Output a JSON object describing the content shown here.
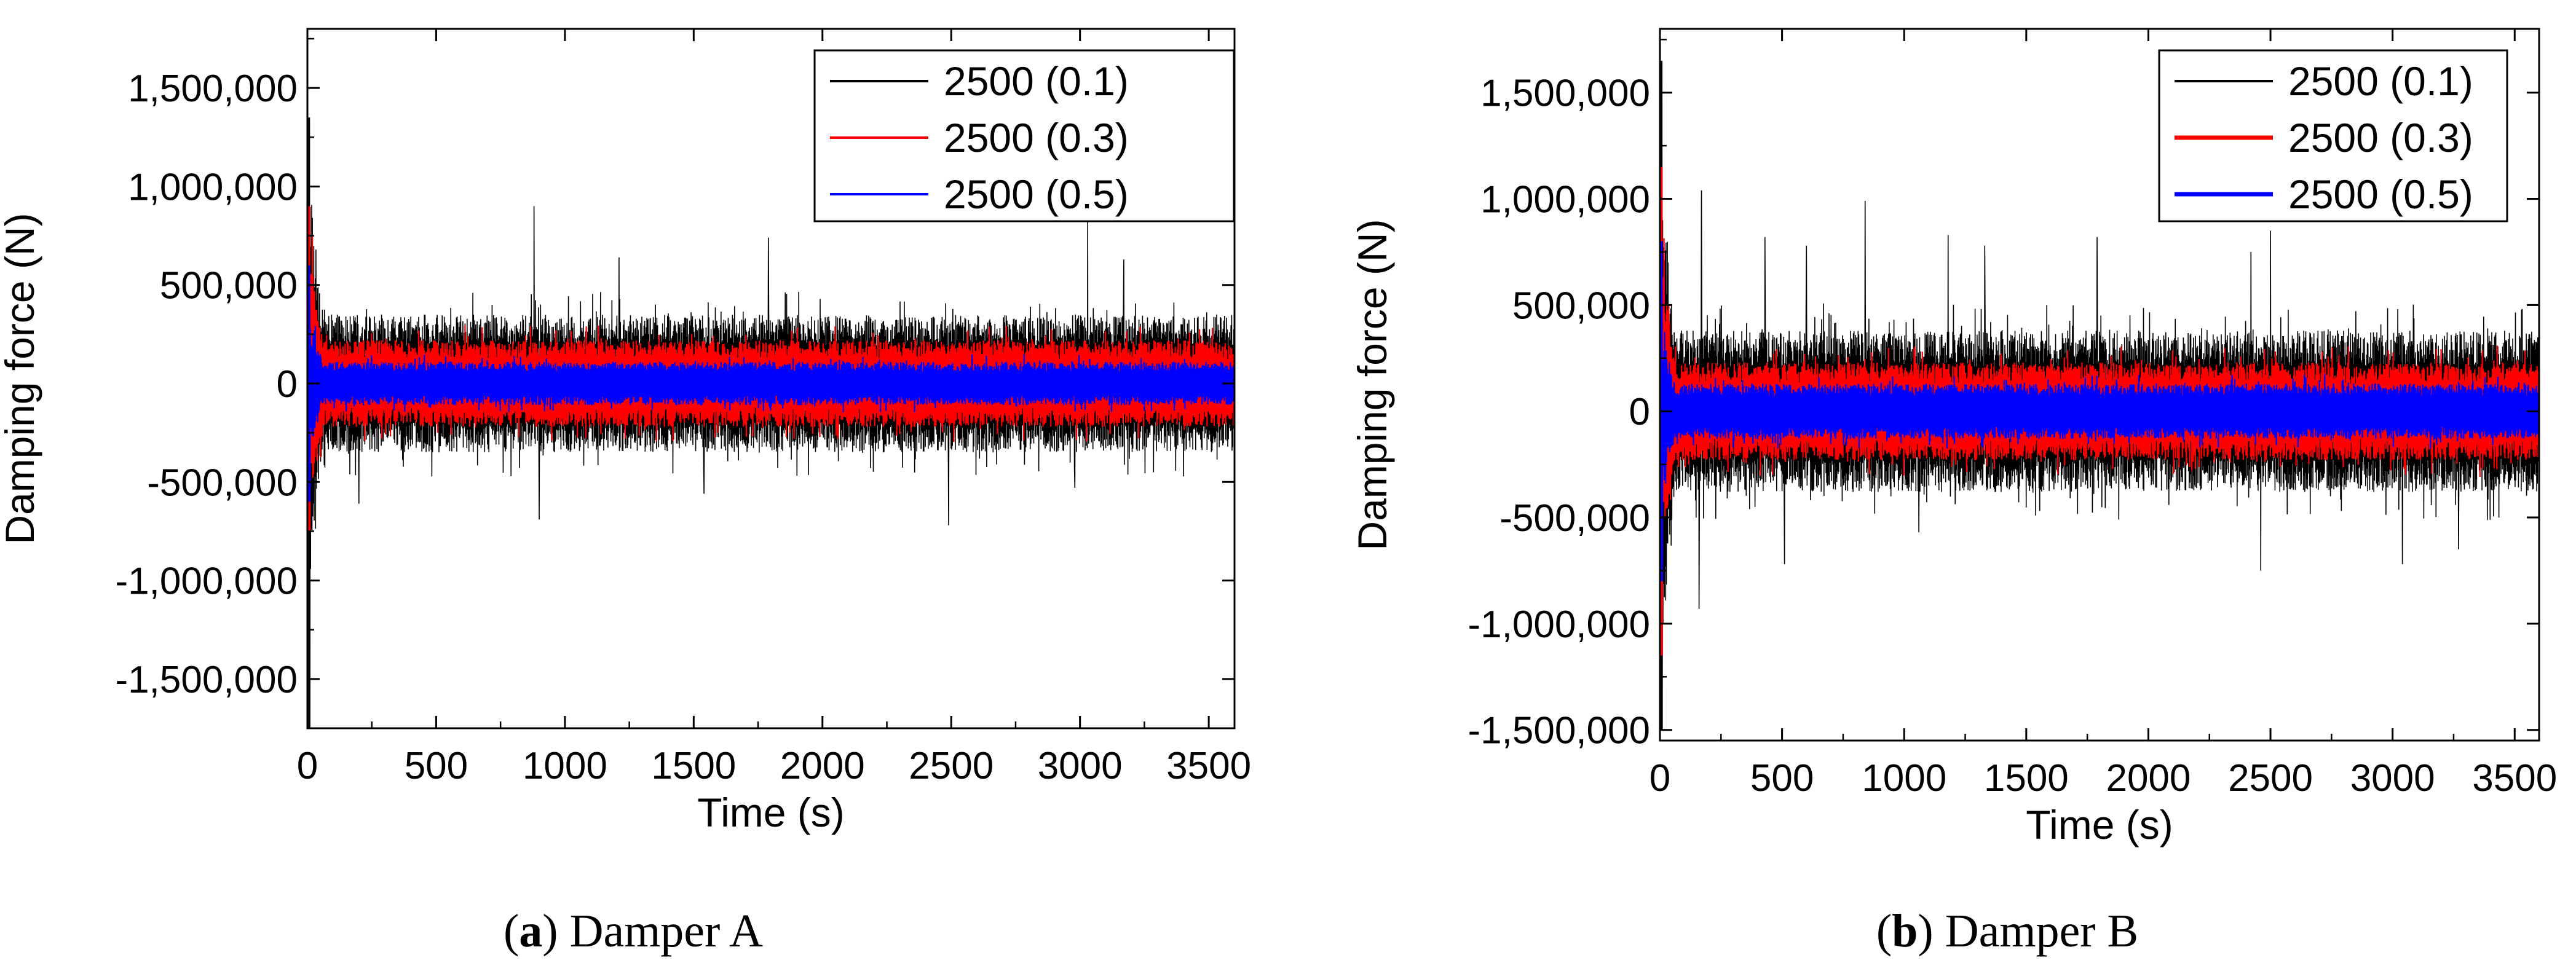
{
  "chart_data": [
    {
      "type": "line",
      "panel": "a",
      "caption_letter": "a",
      "caption_text": "Damper A",
      "xlabel": "Time (s)",
      "ylabel": "Damping force (N)",
      "xlim": [
        0,
        3600
      ],
      "ylim": [
        -1750000,
        1800000
      ],
      "xticks": [
        0,
        500,
        1000,
        1500,
        2000,
        2500,
        3000,
        3500
      ],
      "xtick_labels": [
        "0",
        "500",
        "1000",
        "1500",
        "2000",
        "2500",
        "3000",
        "3500"
      ],
      "yticks": [
        -1500000,
        -1000000,
        -500000,
        0,
        500000,
        1000000,
        1500000
      ],
      "ytick_labels": [
        "-1,500,000",
        "-1,000,000",
        "-500,000",
        "0",
        "500,000",
        "1,000,000",
        "1,500,000"
      ],
      "legend_position": "top-right",
      "series": [
        {
          "name": "2500 (0.1)",
          "color": "#000000",
          "typical_envelope": 350000,
          "initial_peak": [
            1350000,
            -1750000
          ],
          "peaks": [
            [
              880,
              900000
            ],
            [
              1790,
              740000
            ],
            [
              3030,
              820000
            ],
            [
              1210,
              640000
            ],
            [
              3170,
              630000
            ],
            [
              2490,
              -720000
            ],
            [
              900,
              -690000
            ],
            [
              1540,
              -560000
            ],
            [
              2980,
              -530000
            ],
            [
              200,
              -610000
            ]
          ]
        },
        {
          "name": "2500 (0.3)",
          "color": "#ff0000",
          "typical_envelope": 220000,
          "initial_peak": [
            900000,
            -750000
          ],
          "peaks": []
        },
        {
          "name": "2500 (0.5)",
          "color": "#0000ff",
          "typical_envelope": 110000,
          "initial_peak": [
            600000,
            -600000
          ],
          "peaks": []
        }
      ]
    },
    {
      "type": "line",
      "panel": "b",
      "caption_letter": "b",
      "caption_text": "Damper B",
      "xlabel": "Time (s)",
      "ylabel": "Damping force (N)",
      "xlim": [
        0,
        3600
      ],
      "ylim": [
        -1550000,
        1800000
      ],
      "xticks": [
        0,
        500,
        1000,
        1500,
        2000,
        2500,
        3000,
        3500
      ],
      "xtick_labels": [
        "0",
        "500",
        "1000",
        "1500",
        "2000",
        "2500",
        "3000",
        "3500"
      ],
      "yticks": [
        -1500000,
        -1000000,
        -500000,
        0,
        500000,
        1000000,
        1500000
      ],
      "ytick_labels": [
        "-1,500,000",
        "-1,000,000",
        "-500,000",
        "0",
        "500,000",
        "1,000,000",
        "1,500,000"
      ],
      "legend_position": "top-right",
      "series": [
        {
          "name": "2500 (0.1)",
          "color": "#000000",
          "typical_envelope": 380000,
          "initial_peak": [
            1650000,
            -1500000
          ],
          "peaks": [
            [
              170,
              1040000
            ],
            [
              840,
              990000
            ],
            [
              2500,
              850000
            ],
            [
              1180,
              830000
            ],
            [
              1790,
              820000
            ],
            [
              430,
              820000
            ],
            [
              600,
              780000
            ],
            [
              2420,
              750000
            ],
            [
              1330,
              780000
            ],
            [
              160,
              -930000
            ],
            [
              510,
              -720000
            ],
            [
              2460,
              -750000
            ],
            [
              3270,
              -650000
            ],
            [
              3040,
              -720000
            ],
            [
              1060,
              -570000
            ]
          ]
        },
        {
          "name": "2500 (0.3)",
          "color": "#ff0000",
          "typical_envelope": 230000,
          "initial_peak": [
            1150000,
            -1150000
          ],
          "peaks": []
        },
        {
          "name": "2500 (0.5)",
          "color": "#0000ff",
          "typical_envelope": 130000,
          "initial_peak": [
            800000,
            -800000
          ],
          "peaks": []
        }
      ]
    }
  ]
}
